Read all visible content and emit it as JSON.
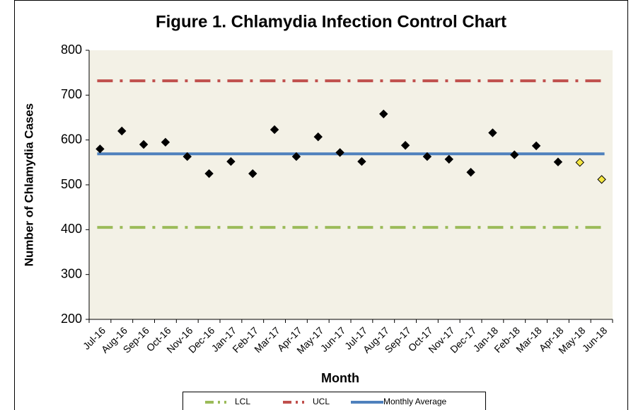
{
  "chart_data": {
    "type": "control",
    "title": "Figure 1.  Chlamydia Infection Control Chart",
    "x_label": "Month",
    "y_label": "Number of Chlamydia Cases",
    "categories": [
      "Jul-16",
      "Aug-16",
      "Sep-16",
      "Oct-16",
      "Nov-16",
      "Dec-16",
      "Jan-17",
      "Feb-17",
      "Mar-17",
      "Apr-17",
      "May-17",
      "Jun-17",
      "Jul-17",
      "Aug-17",
      "Sep-17",
      "Oct-17",
      "Nov-17",
      "Dec-17",
      "Jan-18",
      "Feb-18",
      "Mar-18",
      "Apr-18",
      "May-18",
      "Jun-18"
    ],
    "points": {
      "values": [
        580,
        620,
        590,
        595,
        563,
        525,
        552,
        525,
        623,
        563,
        607,
        572,
        552,
        658,
        588,
        563,
        557,
        528,
        616,
        567,
        587,
        551,
        550,
        512
      ],
      "colors": [
        "#000000",
        "#000000",
        "#000000",
        "#000000",
        "#000000",
        "#000000",
        "#000000",
        "#000000",
        "#000000",
        "#000000",
        "#000000",
        "#000000",
        "#000000",
        "#000000",
        "#000000",
        "#000000",
        "#000000",
        "#000000",
        "#000000",
        "#000000",
        "#000000",
        "#000000",
        "#f5e642",
        "#f5e642"
      ]
    },
    "lines": [
      {
        "name": "LCL",
        "color": "#9bbb59",
        "value": 405,
        "dashed": true
      },
      {
        "name": "UCL",
        "color": "#c0504d",
        "value": 732,
        "dashed": true
      },
      {
        "name": "Monthly Average",
        "color": "#4f81bd",
        "value": 569,
        "dashed": false
      }
    ],
    "ylim": [
      200,
      800
    ],
    "yticks": [
      200,
      300,
      400,
      500,
      600,
      700,
      800
    ]
  }
}
